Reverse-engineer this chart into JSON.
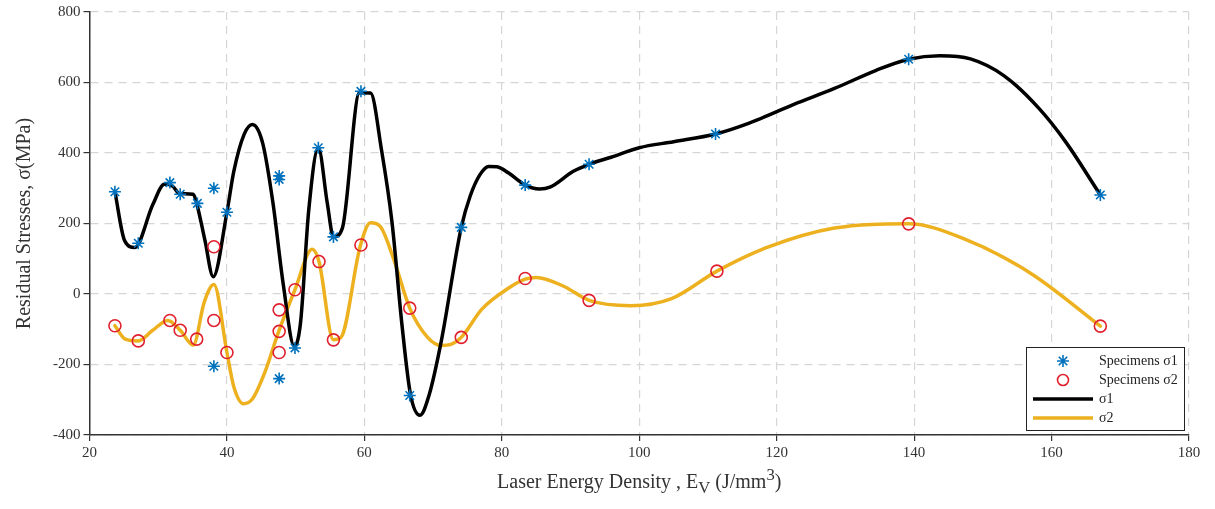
{
  "chart_data": {
    "type": "line",
    "xlabel": "Laser Energy Density , E$_{V}$ (J/mm$^{3}$)",
    "ylabel": "Residual Stresses, σ(MPa)",
    "xlim": [
      20,
      180
    ],
    "xticks": [
      20,
      40,
      60,
      80,
      100,
      120,
      140,
      160,
      180
    ],
    "ylim": [
      -400,
      800
    ],
    "yticks": [
      -400,
      -200,
      0,
      200,
      400,
      600,
      800
    ],
    "grid": true,
    "legend": "bottom right",
    "series": [
      {
        "name": "Specimens σ1",
        "type": "scatter",
        "marker": "cross",
        "color": "#0072bd",
        "x": [
          23.7,
          27.1,
          31.7,
          33.2,
          35.7,
          38.1,
          38.1,
          40.0,
          47.6,
          47.6,
          47.6,
          49.9,
          53.3,
          55.5,
          59.5,
          66.6,
          74.1,
          83.4,
          92.7,
          111.1,
          139.2,
          167.1
        ],
        "values": [
          290,
          144,
          316,
          283,
          257,
          300,
          -205,
          232,
          335,
          325,
          -240,
          -153,
          415,
          162,
          575,
          -288,
          189,
          309,
          368,
          454,
          666,
          281
        ]
      },
      {
        "name": "Specimens σ2",
        "type": "scatter",
        "marker": "circle",
        "color": "#e0202e",
        "x": [
          23.7,
          27.1,
          31.7,
          33.2,
          35.6,
          38.1,
          38.1,
          40.0,
          47.6,
          47.6,
          47.6,
          49.9,
          53.4,
          55.5,
          59.5,
          66.6,
          74.1,
          83.4,
          92.7,
          111.3,
          139.2,
          167.1
        ],
        "values": [
          -90,
          -133,
          -75,
          -103,
          -128,
          134,
          -75,
          -166,
          -45,
          -106,
          -166,
          12,
          92,
          -130,
          139,
          -40,
          -123,
          44,
          -18,
          65,
          199,
          -91
        ]
      },
      {
        "name": "σ1",
        "marker": "none",
        "line_style": "solid",
        "color": "#000000",
        "x": [
          23.7,
          25.1,
          26.6,
          29.2,
          30.9,
          32.1,
          33.1,
          35.1,
          35.6,
          36.8,
          38.0,
          40.0,
          41.0,
          42.5,
          43.7,
          45.2,
          46.7,
          48.2,
          49.8,
          50.7,
          51.9,
          53.3,
          54.6,
          55.5,
          56.8,
          59.3,
          60.9,
          62.5,
          64.0,
          65.5,
          66.7,
          68.1,
          69.4,
          71.2,
          74.1,
          75.4,
          76.8,
          78.1,
          79.3,
          81.0,
          83.4,
          85.5,
          87.0,
          90.4,
          92.7,
          95.9,
          100,
          105,
          111.1,
          116,
          122.5,
          128.4,
          134.4,
          139.2,
          143.7,
          148.2,
          153.1,
          158.1,
          162.0,
          167.1
        ],
        "values": [
          290,
          152,
          132,
          253,
          311,
          306,
          285,
          283,
          257,
          152,
          49,
          232,
          348,
          453,
          481,
          428,
          258,
          27,
          -148,
          -83,
          237,
          415,
          258,
          162,
          187,
          571,
          570,
          408,
          207,
          -93,
          -284,
          -344,
          -288,
          -133,
          189,
          278,
          338,
          362,
          361,
          343,
          309,
          298,
          303,
          348,
          368,
          388,
          415,
          432,
          454,
          485,
          538,
          583,
          634,
          666,
          676,
          667,
          619,
          528,
          433,
          281
        ]
      },
      {
        "name": "σ2",
        "marker": "none",
        "line_style": "solid",
        "color": "#edb120",
        "x": [
          23.7,
          25.2,
          27.1,
          29.2,
          31.4,
          33.2,
          35.1,
          36.7,
          38.1,
          40.0,
          41.0,
          42.4,
          43.7,
          45.5,
          47.5,
          49.9,
          52.4,
          53.4,
          55.5,
          56.6,
          59.4,
          60.9,
          62.3,
          64.3,
          66.6,
          69.2,
          71.2,
          72.6,
          74.1,
          77.1,
          81.0,
          83.4,
          85.0,
          89.0,
          92.7,
          98.8,
          104.7,
          111.3,
          118.6,
          128.4,
          139.2,
          147.2,
          157.1,
          167.1
        ],
        "values": [
          -90,
          -128,
          -133,
          -103,
          -75,
          -103,
          -145,
          -23,
          27,
          -166,
          -263,
          -311,
          -298,
          -223,
          -108,
          12,
          127,
          92,
          -130,
          -123,
          136,
          202,
          192,
          97,
          -40,
          -123,
          -146,
          -143,
          -123,
          -43,
          17,
          42,
          47,
          22,
          -18,
          -33,
          -13,
          65,
          132,
          187,
          199,
          157,
          57,
          -91
        ]
      }
    ]
  }
}
